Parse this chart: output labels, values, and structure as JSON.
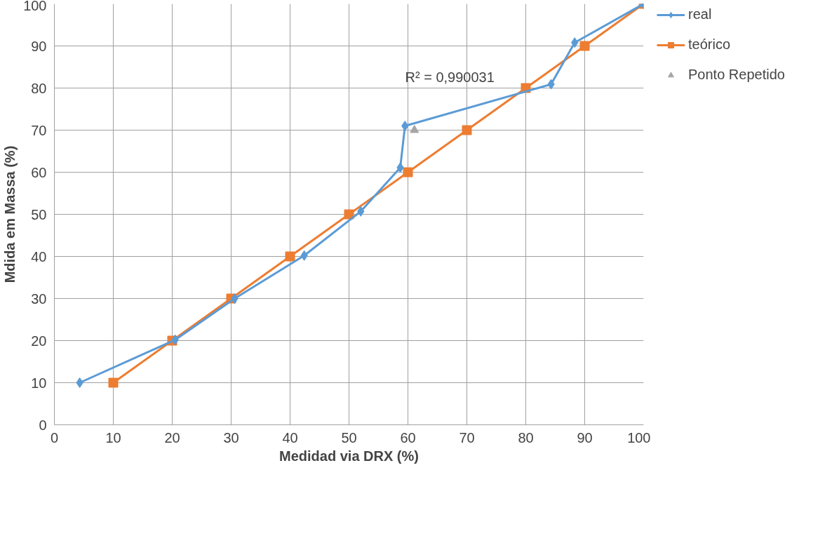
{
  "chart_data": {
    "type": "line",
    "xlabel": "Medidad via DRX (%)",
    "ylabel": "Mdida em Massa (%)",
    "xlim": [
      0,
      100
    ],
    "xticks": [
      0,
      10,
      20,
      30,
      40,
      50,
      60,
      70,
      80,
      90,
      100
    ],
    "ylim": [
      0,
      100
    ],
    "yticks": [
      0,
      10,
      20,
      30,
      40,
      50,
      60,
      70,
      80,
      90,
      100
    ],
    "grid": true,
    "legend": "right",
    "annotations": [
      "R² = 0,990031"
    ],
    "series": [
      {
        "name": "real",
        "color": "#5b9bd5",
        "marker": "diamond",
        "x": [
          4.3,
          20.5,
          30.6,
          42.4,
          52.0,
          58.7,
          59.5,
          84.3,
          88.3,
          100
        ],
        "values": [
          10,
          20.2,
          30,
          40.2,
          50.7,
          61.1,
          71.0,
          80.9,
          90.8,
          100
        ]
      },
      {
        "name": "teórico",
        "color": "#ed7d31",
        "marker": "square",
        "x": [
          10,
          20,
          30,
          40,
          50,
          60,
          70,
          80,
          90,
          100
        ],
        "values": [
          10,
          20,
          30,
          40,
          50,
          60,
          70,
          80,
          90,
          100
        ]
      },
      {
        "name": "Ponto Repetido",
        "type": "scatter",
        "color": "#a5a5a5",
        "marker": "triangle",
        "x": [
          61.1
        ],
        "values": [
          70
        ]
      }
    ]
  }
}
